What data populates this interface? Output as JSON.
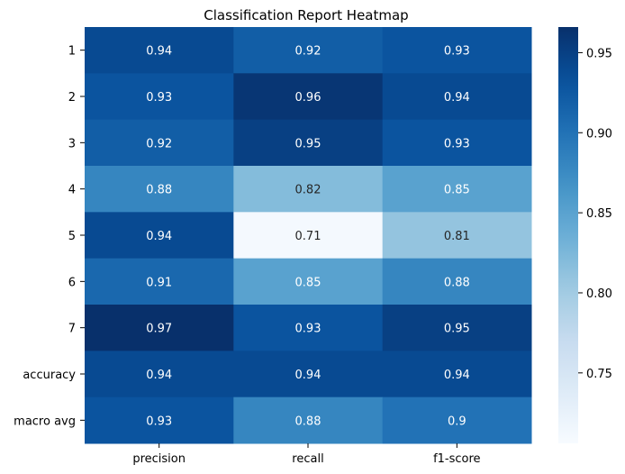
{
  "chart_data": {
    "type": "heatmap",
    "title": "Classification Report Heatmap",
    "xlabel": "",
    "ylabel": "",
    "columns": [
      "precision",
      "recall",
      "f1-score"
    ],
    "rows": [
      "1",
      "2",
      "3",
      "4",
      "5",
      "6",
      "7",
      "accuracy",
      "macro avg"
    ],
    "values": [
      [
        0.94,
        0.92,
        0.93
      ],
      [
        0.93,
        0.96,
        0.94
      ],
      [
        0.92,
        0.95,
        0.93
      ],
      [
        0.88,
        0.82,
        0.85
      ],
      [
        0.94,
        0.71,
        0.81
      ],
      [
        0.91,
        0.85,
        0.88
      ],
      [
        0.97,
        0.93,
        0.95
      ],
      [
        0.94,
        0.94,
        0.94
      ],
      [
        0.93,
        0.88,
        0.9
      ]
    ],
    "value_labels": [
      [
        "0.94",
        "0.92",
        "0.93"
      ],
      [
        "0.93",
        "0.96",
        "0.94"
      ],
      [
        "0.92",
        "0.95",
        "0.93"
      ],
      [
        "0.88",
        "0.82",
        "0.85"
      ],
      [
        "0.94",
        "0.71",
        "0.81"
      ],
      [
        "0.91",
        "0.85",
        "0.88"
      ],
      [
        "0.97",
        "0.93",
        "0.95"
      ],
      [
        "0.94",
        "0.94",
        "0.94"
      ],
      [
        "0.93",
        "0.88",
        "0.9"
      ]
    ],
    "colormap": "Blues",
    "color_range": [
      0.706,
      0.966
    ],
    "colorbar_ticks": [
      0.75,
      0.8,
      0.85,
      0.9,
      0.95
    ],
    "colorbar_tick_labels": [
      "0.75",
      "0.80",
      "0.85",
      "0.90",
      "0.95"
    ],
    "grid": false
  }
}
